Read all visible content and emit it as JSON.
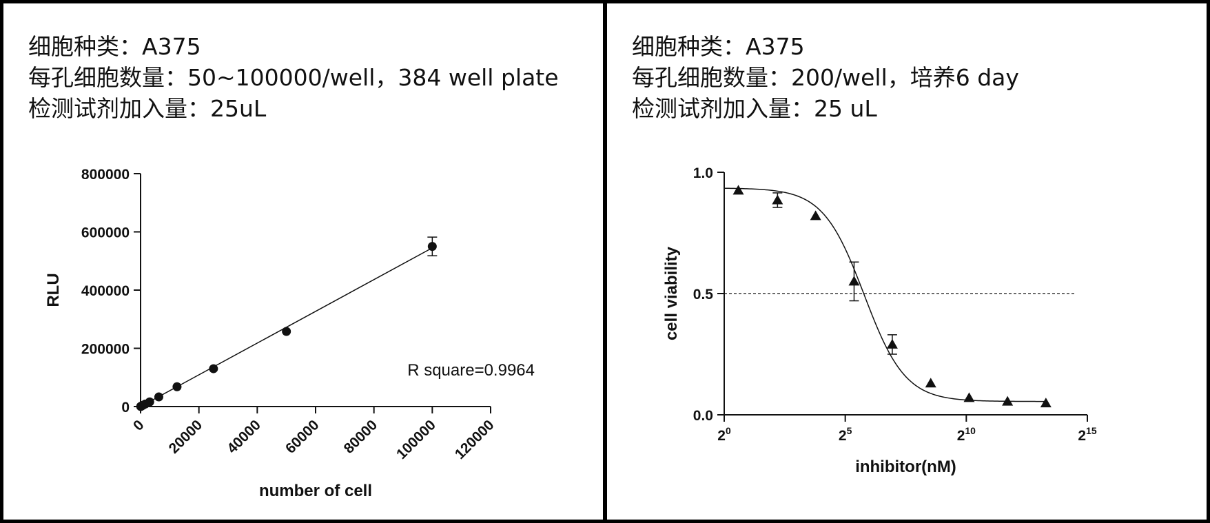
{
  "panels": [
    {
      "header": [
        "细胞种类：A375",
        "每孔细胞数量：50~100000/well，384 well plate",
        "检测试剂加入量：25uL"
      ]
    },
    {
      "header": [
        "细胞种类：A375",
        "每孔细胞数量：200/well，培养6 day",
        "检测试剂加入量：25 uL"
      ]
    }
  ],
  "chart_data": [
    {
      "type": "scatter",
      "title": "",
      "xlabel": "number of cell",
      "ylabel": "RLU",
      "xlim": [
        0,
        120000
      ],
      "ylim": [
        0,
        800000
      ],
      "xticks": [
        "0",
        "20000",
        "40000",
        "60000",
        "80000",
        "100000",
        "120000"
      ],
      "yticks": [
        "0",
        "200000",
        "400000",
        "600000",
        "800000"
      ],
      "x": [
        50,
        100,
        200,
        400,
        800,
        1600,
        3125,
        6250,
        12500,
        25000,
        50000,
        100000
      ],
      "y": [
        300,
        600,
        1200,
        2300,
        4500,
        8500,
        16000,
        33000,
        68000,
        130000,
        258000,
        550000
      ],
      "error": [
        0,
        0,
        0,
        0,
        0,
        0,
        0,
        0,
        0,
        0,
        0,
        32000
      ],
      "fit": "linear",
      "fit_line": {
        "x": [
          0,
          100000
        ],
        "y": [
          0,
          545000
        ]
      },
      "annotation": "R square=0.9964",
      "marker": "circle",
      "grid": false
    },
    {
      "type": "scatter",
      "title": "",
      "xlabel": "inhibitor(nM)",
      "ylabel": "cell viability",
      "xscale": "log2",
      "xlim": [
        1,
        32768
      ],
      "ylim": [
        0,
        1.0
      ],
      "xticks": [
        {
          "base": "2",
          "exp": "0"
        },
        {
          "base": "2",
          "exp": "5"
        },
        {
          "base": "2",
          "exp": "10"
        },
        {
          "base": "2",
          "exp": "15"
        }
      ],
      "yticks": [
        "0.0",
        "0.5",
        "1.0"
      ],
      "x": [
        1.5,
        4.6,
        13.7,
        41.2,
        123,
        370,
        1111,
        3333,
        10000
      ],
      "y": [
        0.925,
        0.885,
        0.82,
        0.55,
        0.29,
        0.13,
        0.07,
        0.055,
        0.048
      ],
      "error": [
        0,
        0.03,
        0,
        0.08,
        0.04,
        0,
        0,
        0,
        0
      ],
      "fit": "four-parameter logistic",
      "fit_params": {
        "top": 0.935,
        "bottom": 0.055,
        "ic50": 55,
        "hill": 1.7
      },
      "reference_line": {
        "y": 0.5,
        "style": "dashed"
      },
      "marker": "triangle",
      "grid": false
    }
  ]
}
